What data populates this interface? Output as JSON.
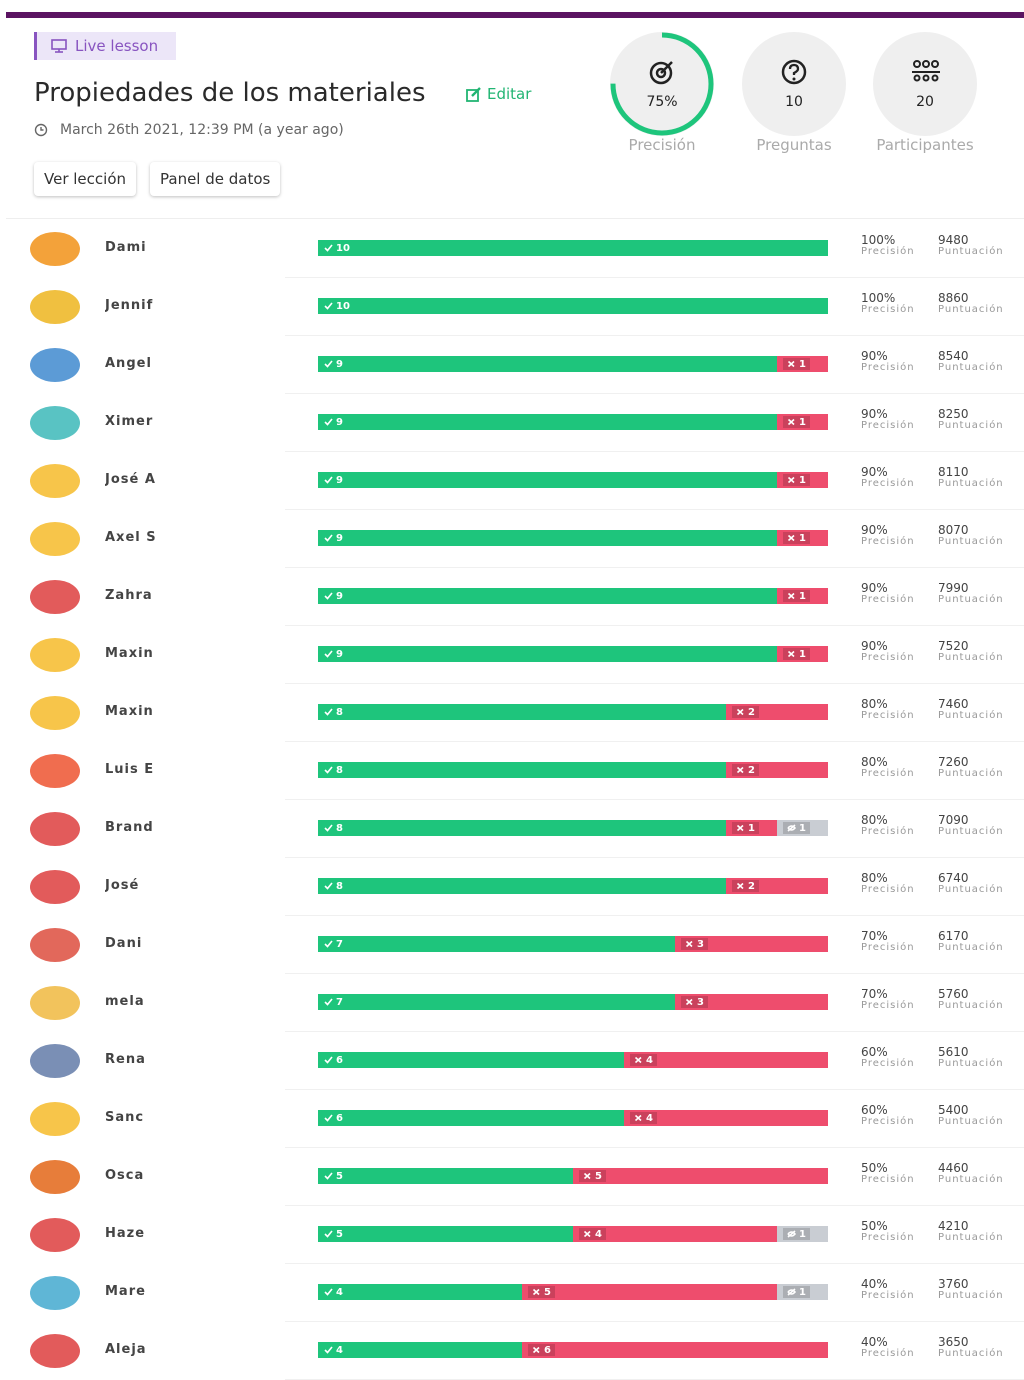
{
  "header": {
    "tag": "Live lesson",
    "title": "Propiedades de los materiales",
    "edit": "Editar",
    "date": "March 26th 2021, 12:39 PM (a year ago)",
    "buttons": [
      "Ver lección",
      "Panel de datos"
    ]
  },
  "stats": [
    {
      "value": 75,
      "label": "75%",
      "name": "Precisión"
    },
    {
      "value": 10,
      "name": "Preguntas"
    },
    {
      "value": 20,
      "name": "Participantes"
    }
  ],
  "row_labels": {
    "accuracy": "Precisión",
    "score": "Puntuación"
  },
  "participants": [
    {
      "name": "Dami",
      "correct": 10,
      "incorrect": 0,
      "unattempted": 0,
      "accuracy": "100%",
      "score": 9480
    },
    {
      "name": "Jennif",
      "correct": 10,
      "incorrect": 0,
      "unattempted": 0,
      "accuracy": "100%",
      "score": 8860
    },
    {
      "name": "Angel",
      "correct": 9,
      "incorrect": 1,
      "unattempted": 0,
      "accuracy": "90%",
      "score": 8540
    },
    {
      "name": "Ximer",
      "correct": 9,
      "incorrect": 1,
      "unattempted": 0,
      "accuracy": "90%",
      "score": 8250
    },
    {
      "name": "José A",
      "correct": 9,
      "incorrect": 1,
      "unattempted": 0,
      "accuracy": "90%",
      "score": 8110
    },
    {
      "name": "Axel S",
      "correct": 9,
      "incorrect": 1,
      "unattempted": 0,
      "accuracy": "90%",
      "score": 8070
    },
    {
      "name": "Zahra",
      "correct": 9,
      "incorrect": 1,
      "unattempted": 0,
      "accuracy": "90%",
      "score": 7990
    },
    {
      "name": "Maxin",
      "correct": 9,
      "incorrect": 1,
      "unattempted": 0,
      "accuracy": "90%",
      "score": 7520
    },
    {
      "name": "Maxin",
      "correct": 8,
      "incorrect": 2,
      "unattempted": 0,
      "accuracy": "80%",
      "score": 7460
    },
    {
      "name": "Luis E",
      "correct": 8,
      "incorrect": 2,
      "unattempted": 0,
      "accuracy": "80%",
      "score": 7260
    },
    {
      "name": "Brand",
      "correct": 8,
      "incorrect": 1,
      "unattempted": 1,
      "accuracy": "80%",
      "score": 7090
    },
    {
      "name": "José",
      "correct": 8,
      "incorrect": 2,
      "unattempted": 0,
      "accuracy": "80%",
      "score": 6740
    },
    {
      "name": "Dani",
      "correct": 7,
      "incorrect": 3,
      "unattempted": 0,
      "accuracy": "70%",
      "score": 6170
    },
    {
      "name": "mela",
      "correct": 7,
      "incorrect": 3,
      "unattempted": 0,
      "accuracy": "70%",
      "score": 5760
    },
    {
      "name": "Rena",
      "correct": 6,
      "incorrect": 4,
      "unattempted": 0,
      "accuracy": "60%",
      "score": 5610
    },
    {
      "name": "Sanc",
      "correct": 6,
      "incorrect": 4,
      "unattempted": 0,
      "accuracy": "60%",
      "score": 5400
    },
    {
      "name": "Osca",
      "correct": 5,
      "incorrect": 5,
      "unattempted": 0,
      "accuracy": "50%",
      "score": 4460
    },
    {
      "name": "Haze",
      "correct": 5,
      "incorrect": 4,
      "unattempted": 1,
      "accuracy": "50%",
      "score": 4210
    },
    {
      "name": "Mare",
      "correct": 4,
      "incorrect": 5,
      "unattempted": 1,
      "accuracy": "40%",
      "score": 3760
    },
    {
      "name": "Aleja",
      "correct": 4,
      "incorrect": 6,
      "unattempted": 0,
      "accuracy": "40%",
      "score": 3650
    }
  ]
}
